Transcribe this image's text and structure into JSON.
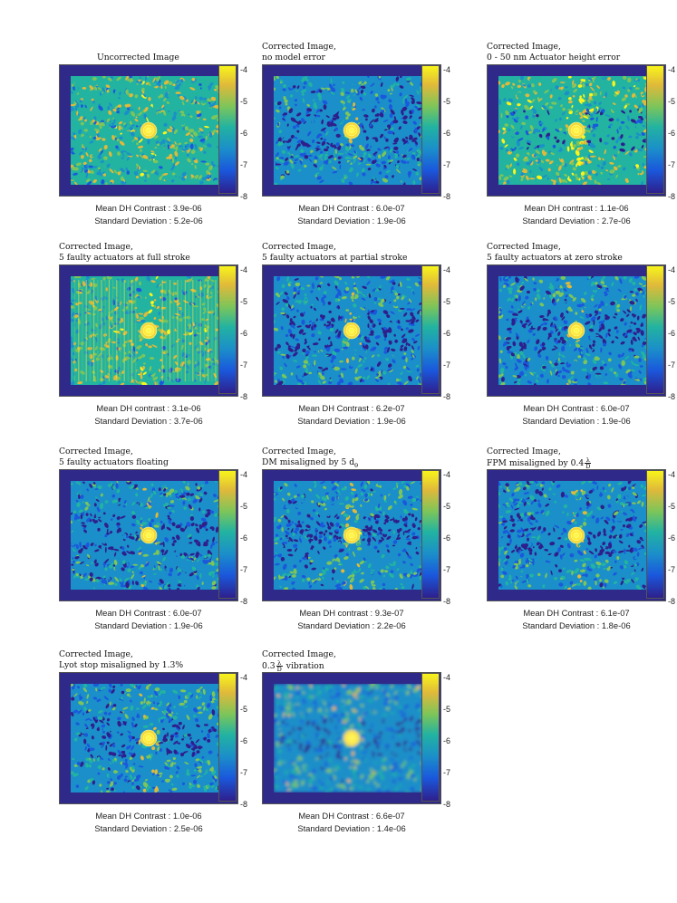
{
  "colorbar": {
    "ticks": [
      "-4",
      "-5",
      "-6",
      "-7",
      "-8"
    ],
    "colormap": [
      "#2e1f8c",
      "#1a58dc",
      "#1b8fc9",
      "#22b3a1",
      "#7cc55a",
      "#e0b93a",
      "#f8f41c"
    ]
  },
  "panels": [
    {
      "title_lines": [
        "Uncorrected Image"
      ],
      "stat1": "Mean DH Contrast : 3.9e-06",
      "stat2": "Standard Deviation : 5.2e-06",
      "dark_hole": false,
      "bright": 0.55,
      "stripes": false,
      "blur": false
    },
    {
      "title_lines": [
        "Corrected Image,",
        "no model error"
      ],
      "stat1": "Mean DH Contrast : 6.0e-07",
      "stat2": "Standard Deviation : 1.9e-06",
      "dark_hole": true,
      "bright": 0.35,
      "stripes": false,
      "blur": false
    },
    {
      "title_lines": [
        "Corrected Image,",
        "0 - 50 nm Actuator height error"
      ],
      "stat1": "Mean DH contrast : 1.1e-06",
      "stat2": "Standard Deviation : 2.7e-06",
      "dark_hole": true,
      "bright": 0.62,
      "stripes": false,
      "blur": false
    },
    {
      "title_lines": [
        "Corrected Image,",
        "5 faulty actuators at full stroke"
      ],
      "stat1": "Mean DH contrast : 3.1e-06",
      "stat2": "Standard Deviation : 3.7e-06",
      "dark_hole": false,
      "bright": 0.55,
      "stripes": true,
      "blur": false
    },
    {
      "title_lines": [
        "Corrected Image,",
        "5 faulty actuators at partial stroke"
      ],
      "stat1": "Mean DH Contrast : 6.2e-07",
      "stat2": "Standard Deviation : 1.9e-06",
      "dark_hole": true,
      "bright": 0.35,
      "stripes": false,
      "blur": false
    },
    {
      "title_lines": [
        "Corrected Image,",
        "5 faulty actuators at zero stroke"
      ],
      "stat1": "Mean DH Contrast : 6.0e-07",
      "stat2": "Standard Deviation : 1.9e-06",
      "dark_hole": true,
      "bright": 0.35,
      "stripes": false,
      "blur": false
    },
    {
      "title_lines": [
        "Corrected Image,",
        "5 faulty actuators floating"
      ],
      "stat1": "Mean DH Contrast : 6.0e-07",
      "stat2": "Standard Deviation : 1.9e-06",
      "dark_hole": true,
      "bright": 0.35,
      "stripes": false,
      "blur": false
    },
    {
      "title_lines": [
        "Corrected Image,",
        "DM misaligned by 5 d"
      ],
      "title_sub": "θ",
      "stat1": "Mean DH contrast : 9.3e-07",
      "stat2": "Standard Deviation : 2.2e-06",
      "dark_hole": true,
      "bright": 0.38,
      "stripes": false,
      "blur": false
    },
    {
      "title_lines": [
        "Corrected Image,",
        "FPM misaligned by 0.4"
      ],
      "title_frac": [
        "λ",
        "D"
      ],
      "stat1": "Mean DH Contrast : 6.1e-07",
      "stat2": "Standard Deviation : 1.8e-06",
      "dark_hole": true,
      "bright": 0.35,
      "stripes": false,
      "blur": false
    },
    {
      "title_lines": [
        "Corrected Image,",
        "Lyot stop misaligned by 1.3%"
      ],
      "stat1": "Mean DH Contrast : 1.0e-06",
      "stat2": "Standard Deviation : 2.5e-06",
      "dark_hole": true,
      "bright": 0.4,
      "stripes": false,
      "blur": false
    },
    {
      "title_lines": [
        "Corrected Image,",
        "0.3"
      ],
      "title_frac": [
        "λ",
        "D"
      ],
      "title_suffix": " vibration",
      "stat1": "Mean DH Contrast : 6.6e-07",
      "stat2": "Standard Deviation : 1.4e-06",
      "dark_hole": true,
      "bright": 0.42,
      "stripes": false,
      "blur": true
    }
  ]
}
